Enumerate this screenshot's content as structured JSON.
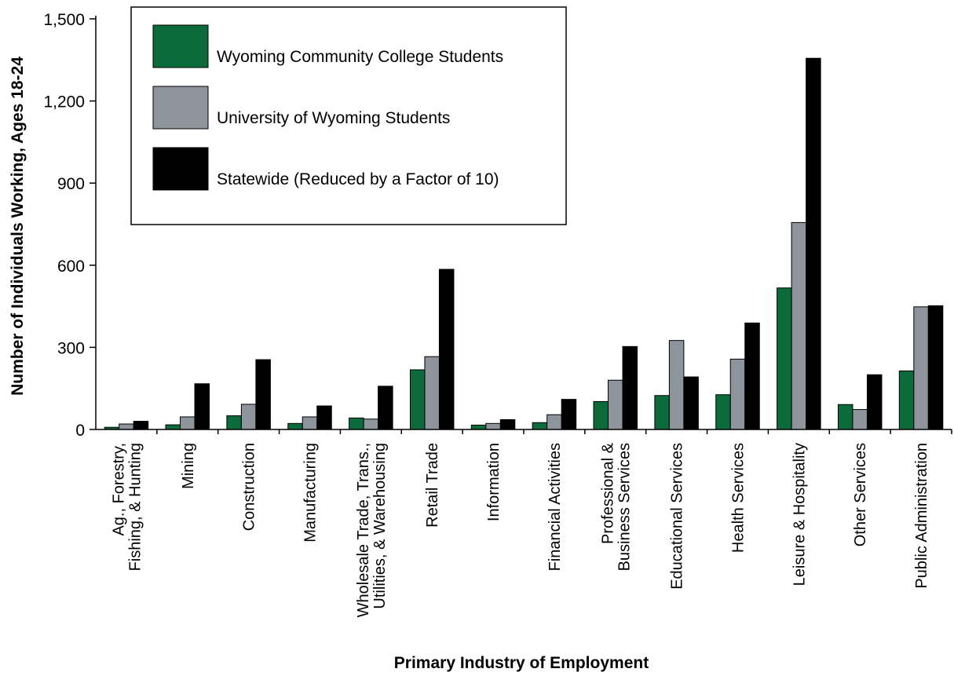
{
  "chart_data": {
    "type": "bar",
    "title": "",
    "xlabel": "Primary Industry of Employment",
    "ylabel": "Number of Individuals Working, Ages 18-24",
    "ylim": [
      0,
      1500
    ],
    "yticks": [
      0,
      300,
      600,
      900,
      1200,
      1500
    ],
    "ytick_labels": [
      "0",
      "300",
      "600",
      "900",
      "1,200",
      "1,500"
    ],
    "categories": [
      [
        "Ag., Forestry,",
        "Fishing, & Hunting"
      ],
      [
        "Mining"
      ],
      [
        "Construction"
      ],
      [
        "Manufacturing"
      ],
      [
        "Wholesale Trade, Trans.,",
        "Utilities, & Warehousing"
      ],
      [
        "Retail Trade"
      ],
      [
        "Information"
      ],
      [
        "Financial Activities"
      ],
      [
        "Professional &",
        "Business Services"
      ],
      [
        "Educational Services"
      ],
      [
        "Health Services"
      ],
      [
        "Leisure & Hospitality"
      ],
      [
        "Other Services"
      ],
      [
        "Public Administration"
      ]
    ],
    "series": [
      {
        "name": "Wyoming Community College Students",
        "color": "#0b6b3a",
        "values": [
          8,
          17,
          50,
          22,
          42,
          218,
          16,
          25,
          102,
          124,
          127,
          517,
          91,
          214
        ]
      },
      {
        "name": "University of Wyoming Students",
        "color": "#8d949b",
        "values": [
          20,
          46,
          92,
          46,
          38,
          266,
          22,
          54,
          180,
          325,
          257,
          756,
          73,
          448
        ]
      },
      {
        "name": "Statewide (Reduced by a Factor of 10)",
        "color": "#000000",
        "values": [
          30,
          167,
          255,
          86,
          158,
          585,
          36,
          110,
          303,
          192,
          389,
          1356,
          200,
          452
        ]
      }
    ],
    "legend_position": "top-left",
    "grid": false
  }
}
